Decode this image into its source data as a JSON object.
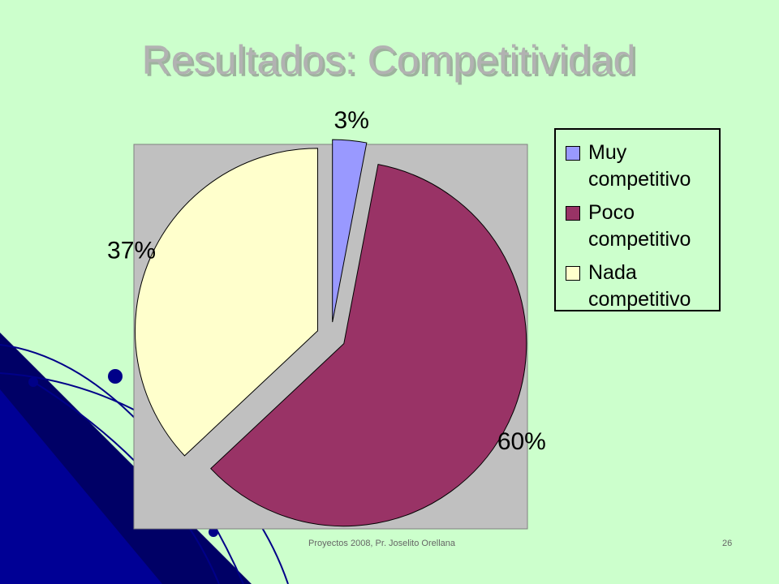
{
  "chart_data": {
    "type": "pie",
    "title": "Resultados: Competitividad",
    "categories": [
      "Muy competitivo",
      "Poco competitivo",
      "Nada competitivo"
    ],
    "values": [
      3,
      60,
      37
    ],
    "value_labels": [
      "3%",
      "60%",
      "37%"
    ],
    "colors": [
      "#9999ff",
      "#993366",
      "#ffffcc"
    ],
    "legend": "right"
  },
  "footer": {
    "text": "Proyectos 2008, Pr. Joselito Orellana",
    "page": 26
  }
}
